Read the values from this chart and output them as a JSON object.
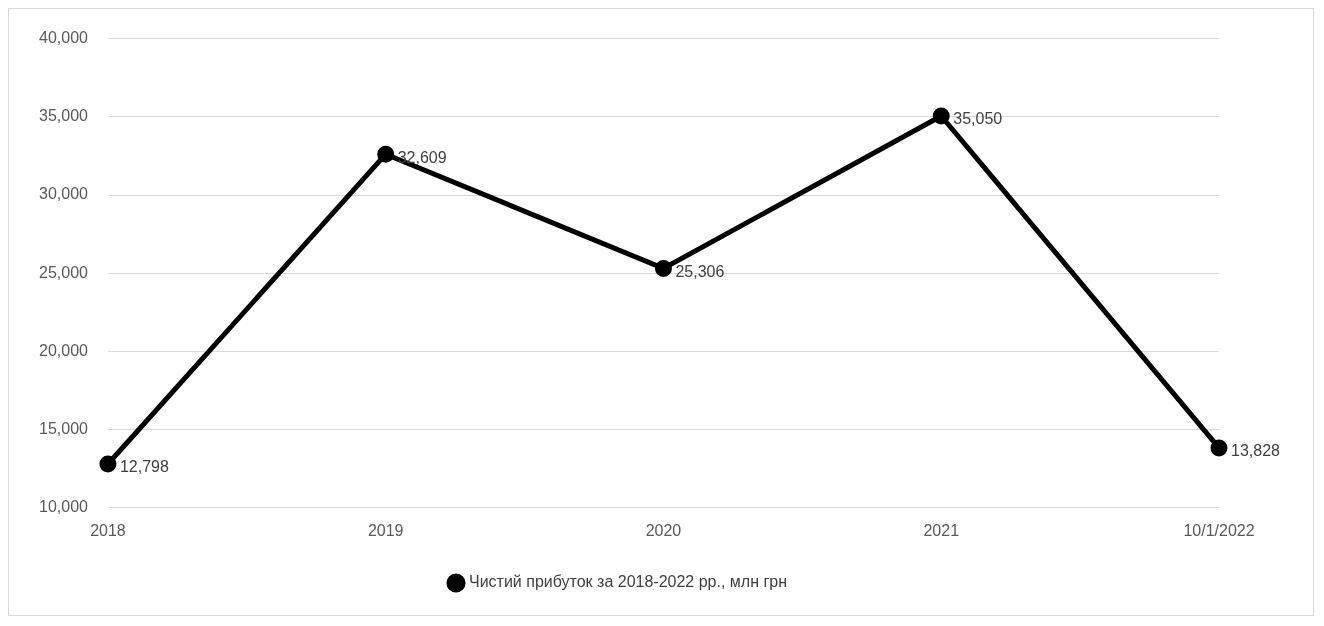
{
  "chart_data": {
    "type": "line",
    "categories": [
      "2018",
      "2019",
      "2020",
      "2021",
      "10/1/2022"
    ],
    "series": [
      {
        "name": "Чистий прибуток за 2018-2022 рр., млн грн",
        "color": "#000000",
        "values": [
          12798,
          32609,
          25306,
          35050,
          13828
        ],
        "value_labels": [
          "12,798",
          "32,609",
          "25,306",
          "35,050",
          "13,828"
        ]
      }
    ],
    "ylim": [
      10000,
      40000
    ],
    "yticks": [
      {
        "value": 10000,
        "label": "10,000"
      },
      {
        "value": 15000,
        "label": "15,000"
      },
      {
        "value": 20000,
        "label": "20,000"
      },
      {
        "value": 25000,
        "label": "25,000"
      },
      {
        "value": 30000,
        "label": "30,000"
      },
      {
        "value": 35000,
        "label": "35,000"
      },
      {
        "value": 40000,
        "label": "40,000"
      }
    ],
    "grid": "y",
    "legend": "bottom",
    "marker": "circle",
    "line_style": "solid"
  }
}
